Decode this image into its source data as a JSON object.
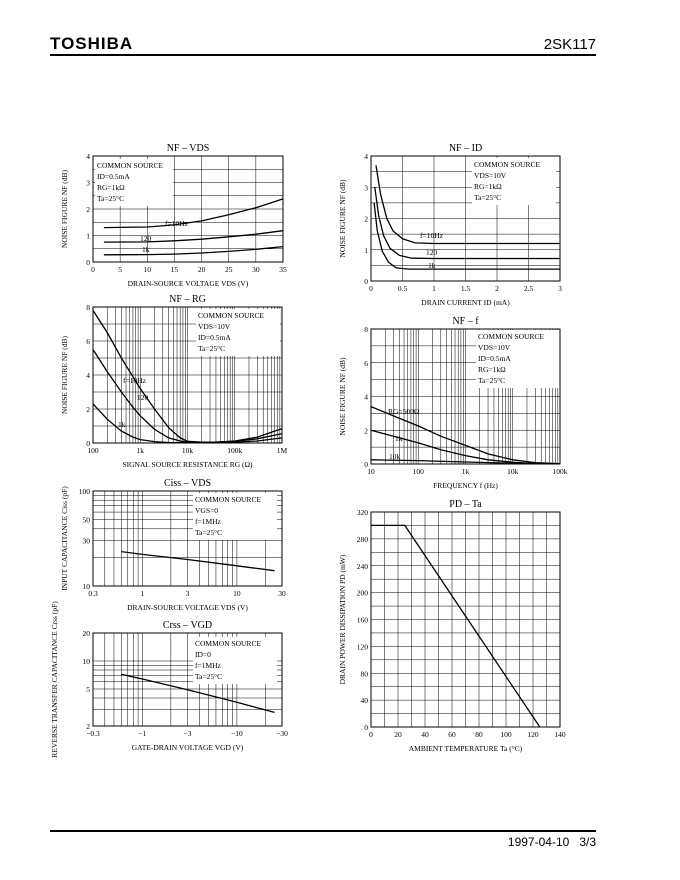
{
  "header": {
    "brand": "TOSHIBA",
    "part_number": "2SK117"
  },
  "footer": {
    "date": "1997-04-10",
    "page": "3/3"
  },
  "chart_data": [
    {
      "id": "nf_vds",
      "type": "line",
      "title": "NF – VDS",
      "xlabel": "DRAIN-SOURCE VOLTAGE  VDS  (V)",
      "ylabel": "NOISE FIGURE  NF  (dB)",
      "xlim": [
        0,
        35
      ],
      "ylim": [
        0,
        4
      ],
      "xscale": "linear",
      "xticks": [
        0,
        5,
        10,
        15,
        20,
        25,
        30,
        35
      ],
      "xtick_labels": [
        "0",
        "5",
        "10",
        "15",
        "20",
        "25",
        "30",
        "35"
      ],
      "yticks": [
        0,
        1,
        2,
        3,
        4
      ],
      "ytick_labels": [
        "0",
        "1",
        "2",
        "3",
        "4"
      ],
      "conditions": [
        "COMMON SOURCE",
        "ID=0.5mA",
        "RG=1kΩ",
        "Ta=25°C"
      ],
      "series": [
        {
          "name": "f=10Hz",
          "x": [
            2,
            10,
            15,
            20,
            25,
            30,
            35
          ],
          "y": [
            1.3,
            1.32,
            1.4,
            1.55,
            1.78,
            2.05,
            2.38
          ]
        },
        {
          "name": "120",
          "x": [
            2,
            10,
            15,
            20,
            25,
            30,
            35
          ],
          "y": [
            0.75,
            0.76,
            0.8,
            0.86,
            0.95,
            1.05,
            1.18
          ]
        },
        {
          "name": "1k",
          "x": [
            2,
            10,
            15,
            20,
            25,
            30,
            35
          ],
          "y": [
            0.27,
            0.28,
            0.3,
            0.34,
            0.4,
            0.48,
            0.58
          ]
        }
      ]
    },
    {
      "id": "nf_id",
      "type": "line",
      "title": "NF – ID",
      "xlabel": "DRAIN CURRENT  ID  (mA)",
      "ylabel": "NOISE FIGURE  NF  (dB)",
      "xlim": [
        0,
        3
      ],
      "ylim": [
        0,
        4
      ],
      "xscale": "linear",
      "xticks": [
        0,
        0.5,
        1,
        1.5,
        2,
        2.5,
        3
      ],
      "xtick_labels": [
        "0",
        "0.5",
        "1",
        "1.5",
        "2",
        "2.5",
        "3"
      ],
      "yticks": [
        0,
        1,
        2,
        3,
        4
      ],
      "ytick_labels": [
        "0",
        "1",
        "2",
        "3",
        "4"
      ],
      "conditions": [
        "COMMON SOURCE",
        "VDS=10V",
        "RG=1kΩ",
        "Ta=25°C"
      ],
      "series": [
        {
          "name": "f=10Hz",
          "x": [
            0.08,
            0.15,
            0.25,
            0.35,
            0.5,
            0.7,
            1,
            3
          ],
          "y": [
            3.7,
            2.8,
            2.0,
            1.6,
            1.35,
            1.22,
            1.2,
            1.2
          ]
        },
        {
          "name": "120",
          "x": [
            0.06,
            0.12,
            0.2,
            0.3,
            0.45,
            0.65,
            1,
            3
          ],
          "y": [
            3.0,
            2.1,
            1.45,
            1.05,
            0.82,
            0.73,
            0.72,
            0.72
          ]
        },
        {
          "name": "1k",
          "x": [
            0.05,
            0.1,
            0.18,
            0.28,
            0.4,
            0.6,
            1,
            3
          ],
          "y": [
            2.5,
            1.6,
            0.95,
            0.6,
            0.42,
            0.38,
            0.38,
            0.38
          ]
        }
      ]
    },
    {
      "id": "nf_rg",
      "type": "line",
      "title": "NF – RG",
      "xlabel": "SIGNAL SOURCE RESISTANCE  RG  (Ω)",
      "ylabel": "NOISE FIGURE  NF  (dB)",
      "xlim": [
        100,
        1000000
      ],
      "ylim": [
        0,
        8
      ],
      "xscale": "log",
      "xticks": [
        100,
        1000,
        10000,
        100000,
        1000000
      ],
      "xtick_labels": [
        "100",
        "1k",
        "10k",
        "100k",
        "1M"
      ],
      "yticks": [
        0,
        2,
        4,
        6,
        8
      ],
      "ytick_labels": [
        "0",
        "2",
        "4",
        "6",
        "8"
      ],
      "conditions": [
        "COMMON SOURCE",
        "VDS=10V",
        "ID=0.5mA",
        "Ta=25°C"
      ],
      "series": [
        {
          "name": "f=10Hz",
          "x": [
            100,
            200,
            400,
            700,
            1000,
            2000,
            4000,
            7000,
            10000,
            20000,
            40000,
            100000,
            300000,
            1000000
          ],
          "y": [
            7.8,
            6.5,
            5.0,
            3.9,
            3.2,
            2.0,
            0.9,
            0.3,
            0.1,
            0.05,
            0.05,
            0.12,
            0.35,
            0.85
          ]
        },
        {
          "name": "120",
          "x": [
            100,
            200,
            400,
            700,
            1000,
            2000,
            4000,
            7000,
            10000,
            40000,
            100000,
            300000,
            1000000
          ],
          "y": [
            5.5,
            4.2,
            3.0,
            2.1,
            1.6,
            0.8,
            0.3,
            0.12,
            0.05,
            0.05,
            0.1,
            0.25,
            0.55
          ]
        },
        {
          "name": "1k",
          "x": [
            100,
            200,
            400,
            700,
            1000,
            2000,
            4000,
            10000,
            40000,
            100000,
            300000,
            1000000
          ],
          "y": [
            2.3,
            1.4,
            0.7,
            0.35,
            0.2,
            0.08,
            0.03,
            0.02,
            0.02,
            0.05,
            0.12,
            0.3
          ]
        }
      ]
    },
    {
      "id": "nf_f",
      "type": "line",
      "title": "NF – f",
      "xlabel": "FREQUENCY  f  (Hz)",
      "ylabel": "NOISE FIGURE  NF  (dB)",
      "xlim": [
        10,
        100000
      ],
      "ylim": [
        0,
        8
      ],
      "xscale": "log",
      "xticks": [
        10,
        100,
        1000,
        10000,
        100000
      ],
      "xtick_labels": [
        "10",
        "100",
        "1k",
        "10k",
        "100k"
      ],
      "yticks": [
        0,
        2,
        4,
        6,
        8
      ],
      "ytick_labels": [
        "0",
        "2",
        "4",
        "6",
        "8"
      ],
      "conditions": [
        "COMMON SOURCE",
        "VDS=10V",
        "ID=0.5mA",
        "RG=1kΩ",
        "Ta=25°C"
      ],
      "series": [
        {
          "name": "RG=500Ω",
          "x": [
            10,
            30,
            100,
            300,
            1000,
            3000,
            10000,
            30000,
            100000
          ],
          "y": [
            3.4,
            2.85,
            2.25,
            1.65,
            1.1,
            0.6,
            0.25,
            0.08,
            0.02
          ]
        },
        {
          "name": "1k",
          "x": [
            10,
            30,
            100,
            300,
            1000,
            3000,
            10000,
            30000,
            100000
          ],
          "y": [
            2.0,
            1.65,
            1.25,
            0.85,
            0.5,
            0.25,
            0.1,
            0.03,
            0.01
          ]
        },
        {
          "name": "10k",
          "x": [
            10,
            100,
            1000,
            10000,
            100000
          ],
          "y": [
            0.25,
            0.2,
            0.12,
            0.05,
            0.01
          ]
        }
      ]
    },
    {
      "id": "ciss_vds",
      "type": "line",
      "title": "Ciss – VDS",
      "xlabel": "DRAIN-SOURCE VOLTAGE  VDS  (V)",
      "ylabel": "INPUT CAPACITANCE  Ciss  (pF)",
      "xlim": [
        0.3,
        30
      ],
      "ylim": [
        10,
        100
      ],
      "xscale": "log",
      "yscale": "log",
      "xticks": [
        0.3,
        1,
        3,
        10,
        30
      ],
      "xtick_labels": [
        "0.3",
        "1",
        "3",
        "10",
        "30"
      ],
      "yticks": [
        10,
        30,
        50,
        100
      ],
      "ytick_labels": [
        "10",
        "30",
        "50",
        "100"
      ],
      "conditions": [
        "COMMON SOURCE",
        "VGS=0",
        "f=1MHz",
        "Ta=25°C"
      ],
      "series": [
        {
          "name": "Ciss",
          "x": [
            0.6,
            1,
            3,
            10,
            25
          ],
          "y": [
            23,
            21.5,
            19,
            16.3,
            14.5
          ]
        }
      ]
    },
    {
      "id": "pd_ta",
      "type": "line",
      "title": "PD – Ta",
      "xlabel": "AMBIENT TEMPERATURE  Ta  (°C)",
      "ylabel": "DRAIN POWER DISSIPATION  PD  (mW)",
      "xlim": [
        0,
        140
      ],
      "ylim": [
        0,
        320
      ],
      "xscale": "linear",
      "xticks": [
        0,
        20,
        40,
        60,
        80,
        100,
        120,
        140
      ],
      "xtick_labels": [
        "0",
        "20",
        "40",
        "60",
        "80",
        "100",
        "120",
        "140"
      ],
      "yticks": [
        0,
        40,
        80,
        120,
        160,
        200,
        240,
        280,
        320
      ],
      "ytick_labels": [
        "0",
        "40",
        "80",
        "120",
        "160",
        "200",
        "240",
        "280",
        "320"
      ],
      "conditions": [],
      "series": [
        {
          "name": "PD",
          "x": [
            0,
            25,
            125
          ],
          "y": [
            300,
            300,
            0
          ]
        }
      ]
    },
    {
      "id": "crss_vgd",
      "type": "line",
      "title": "Crss – VGD",
      "xlabel": "GATE-DRAIN VOLTAGE  VGD  (V)",
      "ylabel": "REVERSE TRANSFER CAPACITANCE  Crss  (pF)",
      "xlim": [
        0.3,
        30
      ],
      "ylim": [
        2,
        20
      ],
      "xscale": "log",
      "yscale": "log",
      "xticks": [
        0.3,
        1,
        3,
        10,
        30
      ],
      "xtick_labels": [
        "−0.3",
        "−1",
        "−3",
        "−10",
        "−30"
      ],
      "yticks": [
        2,
        5,
        10,
        20
      ],
      "ytick_labels": [
        "2",
        "5",
        "10",
        "20"
      ],
      "conditions": [
        "COMMON SOURCE",
        "ID=0",
        "f=1MHz",
        "Ta=25°C"
      ],
      "series": [
        {
          "name": "Crss",
          "x": [
            0.6,
            1,
            3,
            10,
            25
          ],
          "y": [
            7.2,
            6.4,
            4.9,
            3.6,
            2.8
          ]
        }
      ]
    }
  ]
}
